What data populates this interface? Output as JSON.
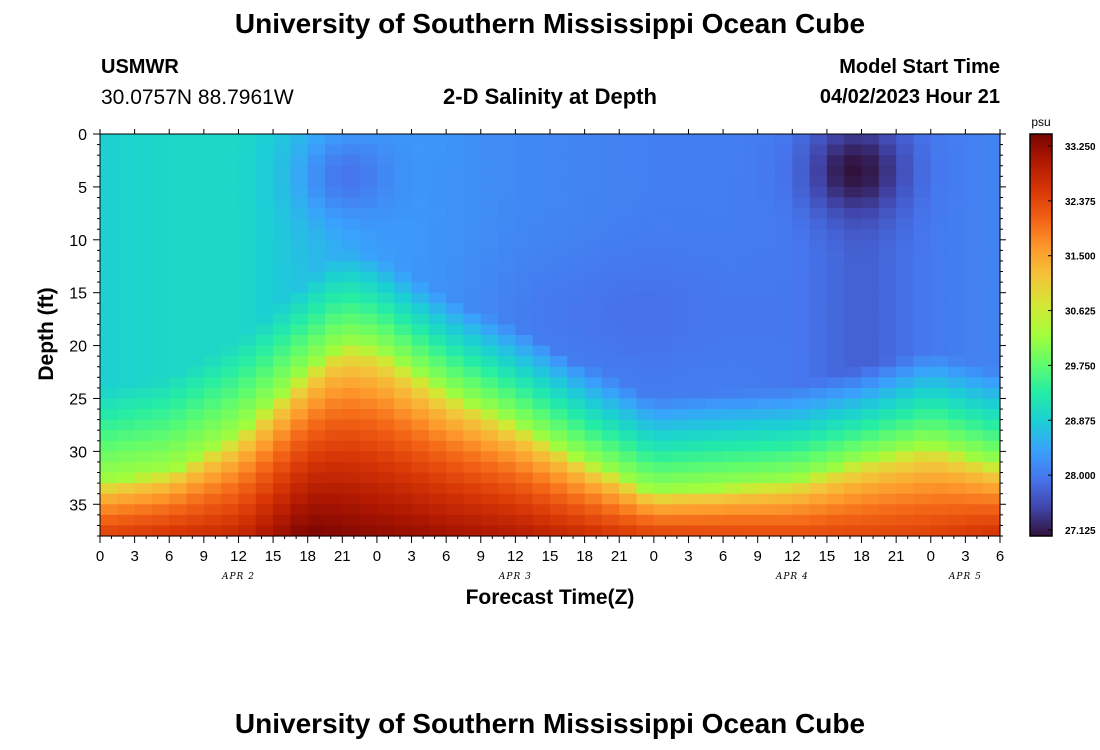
{
  "header": {
    "title": "University of Southern Mississippi Ocean Cube",
    "station_code": "USMWR",
    "station_coords": "30.0757N  88.7961W",
    "plot_title": "2-D Salinity at Depth",
    "model_label": "Model Start Time",
    "model_time": "04/02/2023 Hour 21"
  },
  "footer": {
    "title": "University of Southern Mississippi Ocean Cube"
  },
  "chart_data": {
    "type": "heatmap",
    "title": "2-D Salinity at Depth",
    "xlabel": "Forecast Time(Z)",
    "ylabel": "Depth (ft)",
    "x_tick_labels": [
      "0",
      "3",
      "6",
      "9",
      "12",
      "15",
      "18",
      "21",
      "0",
      "3",
      "6",
      "9",
      "12",
      "15",
      "18",
      "21",
      "0",
      "3",
      "6",
      "9",
      "12",
      "15",
      "18",
      "21",
      "0",
      "3",
      "6"
    ],
    "date_labels": [
      {
        "label": "APR 2",
        "hour": 12
      },
      {
        "label": "APR 3",
        "hour": 36
      },
      {
        "label": "APR 4",
        "hour": 60
      },
      {
        "label": "APR 5",
        "hour": 75
      }
    ],
    "xlim_hours": [
      0,
      78
    ],
    "y_ticks": [
      0,
      5,
      10,
      15,
      20,
      25,
      30,
      35
    ],
    "ylim_ft": [
      0,
      38
    ],
    "y_inverted": true,
    "colorbar": {
      "unit": "psu",
      "min": 27.125,
      "max": 33.25,
      "tick_labels": [
        "33.250",
        "32.375",
        "31.500",
        "30.625",
        "29.750",
        "28.875",
        "28.000",
        "27.125"
      ],
      "colormap": [
        "#30123b",
        "#4145ab",
        "#4675ed",
        "#39a2fc",
        "#1bcfd4",
        "#24eca6",
        "#61fc6c",
        "#a4fc3b",
        "#d1e834",
        "#f3c63a",
        "#fe9b2d",
        "#f36315",
        "#d93806",
        "#b11901",
        "#7a0402"
      ]
    },
    "fields": {
      "surface_hours": [
        0,
        6,
        12,
        18,
        24,
        30,
        36,
        42,
        48,
        54,
        60,
        66,
        72,
        78
      ],
      "surface_values": [
        28.9,
        29.0,
        29.0,
        28.7,
        28.4,
        28.3,
        28.2,
        28.15,
        28.1,
        28.1,
        28.05,
        27.8,
        28.05,
        28.15
      ],
      "high_layer_top_hours": [
        0,
        6,
        12,
        18,
        21,
        24,
        30,
        36,
        42,
        48,
        54,
        60,
        66,
        72,
        78
      ],
      "high_layer_top_ft": [
        33,
        32,
        28.5,
        22.5,
        20,
        20.5,
        24.5,
        27.5,
        31,
        34,
        33.5,
        33,
        31,
        29.5,
        31.5
      ],
      "bottom_values_hours": [
        0,
        12,
        18,
        24,
        36,
        48,
        60,
        72,
        78
      ],
      "bottom_values": [
        32.3,
        32.6,
        33.25,
        33.1,
        32.8,
        32.3,
        32.2,
        32.3,
        32.5
      ],
      "surface_low_spots": [
        {
          "hour": 65.5,
          "depth_ft": 3.5,
          "value": 27.125
        },
        {
          "hour": 21.5,
          "depth_ft": 4,
          "value": 28.0
        }
      ],
      "mid_depth_low": {
        "hour": 44,
        "depth_ft": 17,
        "value": 28.05
      }
    }
  }
}
